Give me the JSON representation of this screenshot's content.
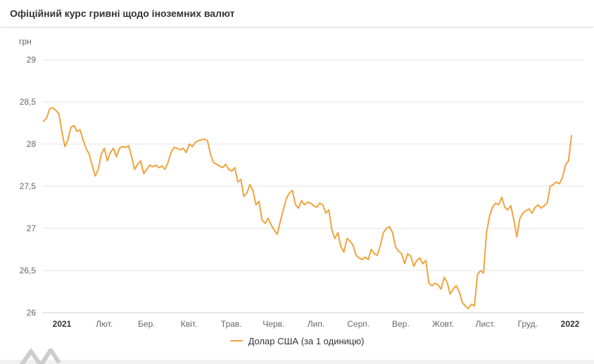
{
  "header": {
    "title": "Офіційний курс гривні щодо іноземних валют"
  },
  "chart_data": {
    "type": "line",
    "title": "Офіційний курс гривні щодо іноземних валют",
    "xlabel": "",
    "ylabel": "грн",
    "ylim": [
      26,
      29
    ],
    "grid": true,
    "legend_position": "bottom",
    "ytick_values": [
      29,
      28.5,
      28,
      27.5,
      27,
      26.5,
      26
    ],
    "ytick_labels": [
      "29",
      "28,5",
      "28",
      "27,5",
      "27",
      "26,5",
      "26"
    ],
    "x_labels": [
      "2021",
      "Лют.",
      "Бер.",
      "Квіт.",
      "Трав.",
      "Черв.",
      "Лип.",
      "Серп.",
      "Вер.",
      "Жовт.",
      "Лист.",
      "Груд.",
      "2022"
    ],
    "series": [
      {
        "name": "Долар США (за 1 одиницю)",
        "color": "#f1a33c",
        "values": [
          28.27,
          28.31,
          28.42,
          28.43,
          28.4,
          28.36,
          28.15,
          27.97,
          28.05,
          28.2,
          28.22,
          28.15,
          28.17,
          28.05,
          27.95,
          27.88,
          27.75,
          27.62,
          27.7,
          27.88,
          27.95,
          27.8,
          27.9,
          27.95,
          27.85,
          27.95,
          27.97,
          27.96,
          27.98,
          27.85,
          27.7,
          27.76,
          27.8,
          27.65,
          27.7,
          27.75,
          27.73,
          27.75,
          27.72,
          27.74,
          27.7,
          27.78,
          27.9,
          27.96,
          27.95,
          27.93,
          27.95,
          27.9,
          28.0,
          27.97,
          28.02,
          28.04,
          28.05,
          28.06,
          28.04,
          27.88,
          27.78,
          27.76,
          27.74,
          27.72,
          27.76,
          27.7,
          27.68,
          27.72,
          27.55,
          27.58,
          27.38,
          27.42,
          27.52,
          27.45,
          27.28,
          27.32,
          27.1,
          27.06,
          27.12,
          27.04,
          26.98,
          26.93,
          27.08,
          27.22,
          27.35,
          27.42,
          27.45,
          27.28,
          27.24,
          27.33,
          27.28,
          27.31,
          27.3,
          27.27,
          27.25,
          27.3,
          27.28,
          27.18,
          27.22,
          26.98,
          26.88,
          26.95,
          26.78,
          26.72,
          26.88,
          26.85,
          26.8,
          26.68,
          26.65,
          26.63,
          26.66,
          26.63,
          26.75,
          26.7,
          26.68,
          26.8,
          26.95,
          27.0,
          27.02,
          26.95,
          26.78,
          26.73,
          26.7,
          26.58,
          26.7,
          26.67,
          26.55,
          26.62,
          26.65,
          26.58,
          26.62,
          26.35,
          26.32,
          26.35,
          26.33,
          26.28,
          26.42,
          26.36,
          26.22,
          26.28,
          26.32,
          26.25,
          26.12,
          26.08,
          26.05,
          26.1,
          26.08,
          26.45,
          26.5,
          26.47,
          26.95,
          27.15,
          27.25,
          27.3,
          27.28,
          27.37,
          27.25,
          27.22,
          27.27,
          27.1,
          26.9,
          27.12,
          27.18,
          27.21,
          27.23,
          27.18,
          27.25,
          27.28,
          27.24,
          27.27,
          27.3,
          27.5,
          27.52,
          27.55,
          27.53,
          27.6,
          27.75,
          27.8,
          28.1
        ]
      }
    ]
  },
  "colors": {
    "title_text": "#333333",
    "axis_label": "#666666",
    "gridline": "#e6e6e6",
    "axis_line": "#cfd2d6",
    "series_line": "#f1a33c"
  }
}
